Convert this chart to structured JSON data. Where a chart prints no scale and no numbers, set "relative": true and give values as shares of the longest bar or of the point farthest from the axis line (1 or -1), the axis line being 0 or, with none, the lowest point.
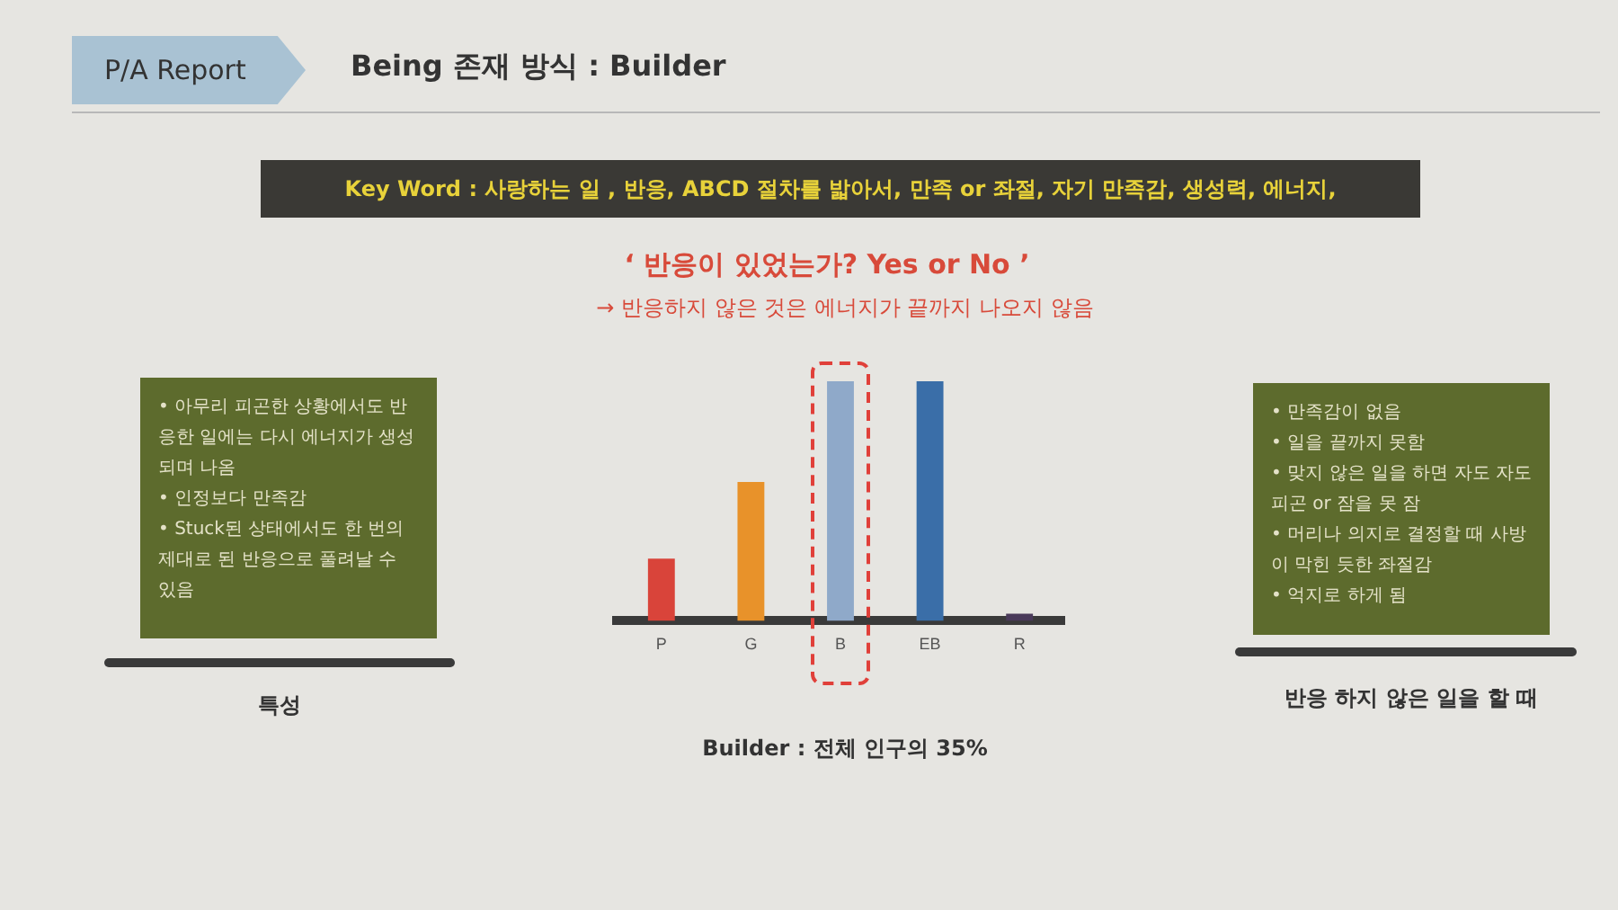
{
  "chart_data": {
    "type": "bar",
    "title": "Being  존재 방식 : Builder",
    "subtitle": "‘ 반응이 있었는가? Yes or No ’",
    "categories": [
      "P",
      "G",
      "B",
      "EB",
      "R"
    ],
    "values": [
      0.26,
      0.58,
      1,
      1,
      0.03
    ],
    "colors": [
      "#d9443a",
      "#e8922a",
      "#8fa9c9",
      "#3a6ea8",
      "#4a3a5a"
    ],
    "relative": true,
    "grid": false,
    "legend": false,
    "annotations": [
      "P/A Report",
      "Key Word :  사랑하는 일 , 반응, ABCD 절차를 밟아서, 만족 or 좌절, 자기 만족감, 생성력, 에너지,",
      "→  반응하지 않은 것은 에너지가 끝까지 나오지 않음",
      "•  아무리 피곤한 상황에서도 반응한 일에는 다시 에너지가 생성되며 나옴",
      "•  인정보다 만족감",
      "•  Stuck된 상태에서도 한 번의 제대로 된 반응으로 풀려날 수 있음",
      "특성",
      "•  만족감이 없음",
      "•  일을 끝까지 못함",
      "•  맞지 않은 일을 하면 자도 자도 피곤 or 잠을 못 잠",
      "•  머리나 의지로 결정할 때 사방이 막힌 듯한 좌절감",
      "•  억지로 하게 됨",
      "반응 하지 않은 일을 할 때",
      "Builder :  전체 인구의 35%"
    ]
  }
}
